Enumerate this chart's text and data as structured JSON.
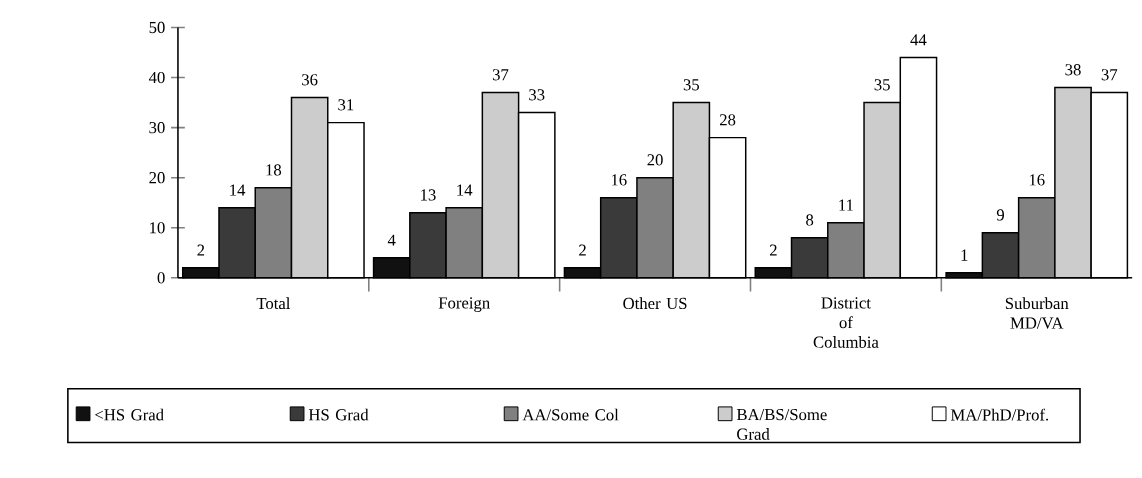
{
  "chart_data": {
    "type": "bar",
    "categories": [
      "Total",
      "Foreign",
      "Other US",
      "District of Columbia",
      "Suburban MD/VA"
    ],
    "series": [
      {
        "name": "<HS Grad",
        "color": "#111111",
        "values": [
          2,
          4,
          2,
          2,
          1
        ]
      },
      {
        "name": "HS Grad",
        "color": "#3a3a3a",
        "values": [
          14,
          13,
          16,
          8,
          9
        ]
      },
      {
        "name": "AA/Some Col",
        "color": "#808080",
        "values": [
          18,
          14,
          20,
          11,
          16
        ]
      },
      {
        "name": "BA/BS/Some Grad",
        "color": "#cccccc",
        "values": [
          36,
          37,
          35,
          35,
          38
        ]
      },
      {
        "name": "MA/PhD/Prof.",
        "color": "#ffffff",
        "values": [
          31,
          33,
          28,
          44,
          37
        ]
      }
    ],
    "ylim": [
      0,
      50
    ],
    "yticks": [
      0,
      10,
      20,
      30,
      40,
      50
    ],
    "data_labels": true,
    "legend": "bottom"
  }
}
